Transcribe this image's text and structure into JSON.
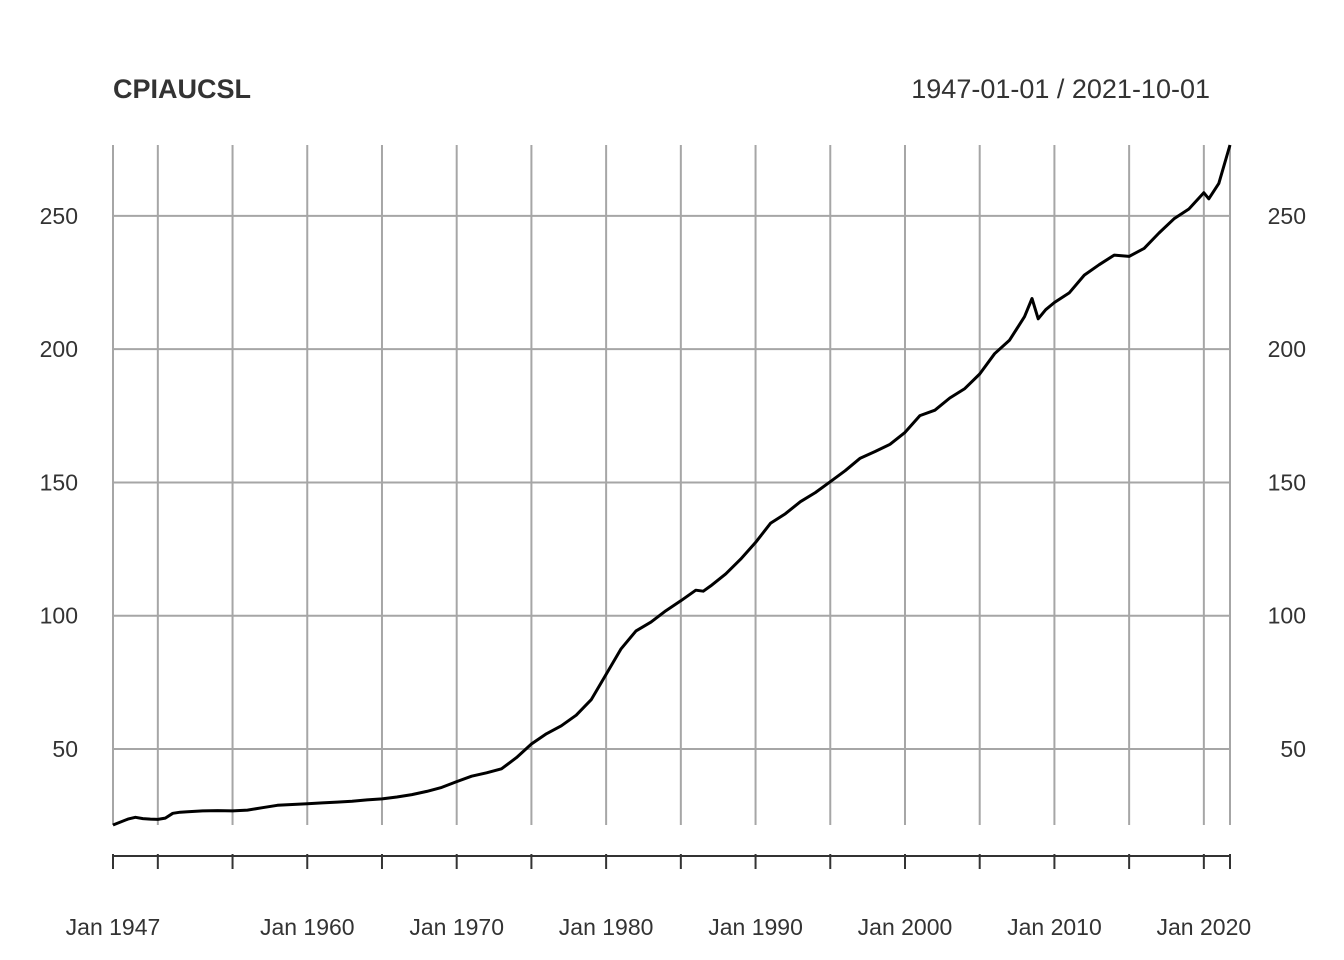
{
  "chart_data": {
    "type": "line",
    "title": "CPIAUCSL",
    "date_range": "1947-01-01 / 2021-10-01",
    "xlabel": "",
    "ylabel": "",
    "x_tick_labels": [
      "Jan 1947",
      "Jan 1960",
      "Jan 1970",
      "Jan 1980",
      "Jan 1990",
      "Jan 2000",
      "Jan 2010",
      "Jan 2020"
    ],
    "y_ticks": [
      50,
      100,
      150,
      200,
      250
    ],
    "y_axes": "left and right",
    "grid": true,
    "line_color": "#000000",
    "grid_color": "#a6a6a6",
    "xlim": [
      "1947-01",
      "2021-10"
    ],
    "ylim": [
      21.5,
      276.6
    ],
    "series": [
      {
        "x": [
          "1947-01",
          "1948-01",
          "1948-07",
          "1949-01",
          "1949-07",
          "1950-01",
          "1950-07",
          "1951-01",
          "1951-07",
          "1952-01",
          "1953-01",
          "1954-01",
          "1955-01",
          "1956-01",
          "1957-01",
          "1958-01",
          "1959-01",
          "1960-01",
          "1961-01",
          "1962-01",
          "1963-01",
          "1964-01",
          "1965-01",
          "1966-01",
          "1967-01",
          "1968-01",
          "1969-01",
          "1970-01",
          "1971-01",
          "1972-01",
          "1973-01",
          "1974-01",
          "1975-01",
          "1976-01",
          "1977-01",
          "1978-01",
          "1979-01",
          "1980-01",
          "1981-01",
          "1982-01",
          "1983-01",
          "1984-01",
          "1985-01",
          "1986-01",
          "1986-07",
          "1987-01",
          "1988-01",
          "1989-01",
          "1990-01",
          "1991-01",
          "1992-01",
          "1993-01",
          "1994-01",
          "1995-01",
          "1996-01",
          "1997-01",
          "1998-01",
          "1999-01",
          "2000-01",
          "2001-01",
          "2002-01",
          "2003-01",
          "2004-01",
          "2005-01",
          "2006-01",
          "2007-01",
          "2008-01",
          "2008-07",
          "2008-12",
          "2009-06",
          "2010-01",
          "2011-01",
          "2012-01",
          "2013-01",
          "2014-01",
          "2015-01",
          "2016-01",
          "2017-01",
          "2018-01",
          "2019-01",
          "2020-01",
          "2020-05",
          "2021-01",
          "2021-10"
        ],
        "y": [
          21.5,
          23.7,
          24.4,
          23.9,
          23.7,
          23.6,
          24.1,
          25.9,
          26.3,
          26.5,
          26.8,
          26.9,
          26.8,
          27.1,
          28.0,
          28.9,
          29.2,
          29.5,
          29.8,
          30.1,
          30.4,
          30.9,
          31.3,
          32.0,
          32.9,
          34.1,
          35.6,
          37.8,
          39.8,
          41.1,
          42.6,
          46.8,
          51.9,
          55.7,
          58.7,
          62.7,
          68.5,
          78.0,
          87.6,
          94.3,
          97.6,
          101.9,
          105.6,
          109.6,
          109.2,
          111.2,
          115.7,
          121.2,
          127.5,
          134.7,
          138.3,
          142.8,
          146.2,
          150.3,
          154.4,
          159.1,
          161.6,
          164.3,
          168.8,
          175.1,
          177.1,
          181.7,
          185.2,
          190.7,
          198.3,
          203.4,
          212.2,
          219.0,
          211.4,
          214.8,
          217.5,
          221.2,
          227.8,
          231.7,
          235.3,
          234.8,
          237.8,
          243.6,
          248.9,
          252.6,
          258.7,
          256.4,
          262.2,
          276.6
        ]
      }
    ]
  }
}
